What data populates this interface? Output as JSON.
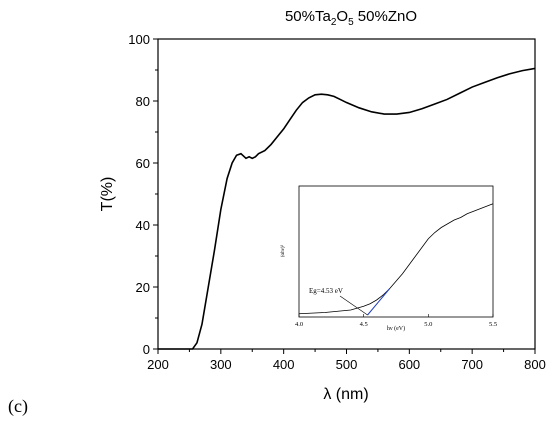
{
  "chart_data": [
    {
      "type": "line",
      "title": {
        "main": "50%Ta",
        "sub1": "2",
        "mid": "O",
        "sub2": "5",
        "tail": " 50%ZnO"
      },
      "xlabel": "λ (nm)",
      "ylabel": "T(%)",
      "xlim": [
        200,
        800
      ],
      "ylim": [
        0,
        100
      ],
      "xticks": [
        200,
        300,
        400,
        500,
        600,
        700,
        800
      ],
      "yticks": [
        0,
        20,
        40,
        60,
        80,
        100
      ],
      "grid": false,
      "series": [
        {
          "x": [
            200,
            255,
            262,
            270,
            280,
            290,
            300,
            310,
            318,
            325,
            332,
            340,
            345,
            350,
            355,
            360,
            370,
            380,
            390,
            400,
            410,
            420,
            430,
            440,
            450,
            460,
            470,
            480,
            490,
            500,
            520,
            540,
            560,
            580,
            600,
            620,
            640,
            660,
            680,
            700,
            720,
            740,
            760,
            780,
            800
          ],
          "y": [
            0,
            0,
            2,
            8,
            20,
            32,
            45,
            55,
            60,
            62.5,
            63,
            61.5,
            62,
            61.5,
            62,
            63,
            64,
            66,
            68.5,
            71,
            74,
            77,
            79.5,
            81,
            82,
            82.2,
            82,
            81.5,
            80.5,
            79.5,
            77.8,
            76.5,
            75.8,
            75.8,
            76.3,
            77.5,
            79,
            80.5,
            82.5,
            84.5,
            86,
            87.5,
            88.8,
            89.8,
            90.5
          ]
        }
      ]
    },
    {
      "type": "line",
      "xlabel": "hν (eV)",
      "ylabel": "(αhν)²",
      "xlim": [
        4.0,
        5.5
      ],
      "xticks": [
        "4.0",
        "4.5",
        "5.0",
        "5.5"
      ],
      "annotation": "Eg=4.53 eV",
      "bandgap_eV": 4.53,
      "series": [
        {
          "x": [
            4.0,
            4.1,
            4.2,
            4.3,
            4.4,
            4.45,
            4.5,
            4.55,
            4.6,
            4.65,
            4.7,
            4.75,
            4.8,
            4.85,
            4.9,
            4.95,
            5.0,
            5.05,
            5.1,
            5.15,
            5.2,
            5.25,
            5.3,
            5.35,
            5.4,
            5.45,
            5.5
          ],
          "y": [
            0.01,
            0.015,
            0.02,
            0.03,
            0.04,
            0.055,
            0.07,
            0.09,
            0.12,
            0.16,
            0.21,
            0.27,
            0.33,
            0.4,
            0.47,
            0.54,
            0.61,
            0.66,
            0.7,
            0.73,
            0.76,
            0.78,
            0.81,
            0.83,
            0.85,
            0.87,
            0.89
          ]
        }
      ],
      "tangent": {
        "x": [
          4.53,
          4.7
        ],
        "y": [
          0.0,
          0.21
        ]
      }
    }
  ],
  "panel_label": "(c)"
}
